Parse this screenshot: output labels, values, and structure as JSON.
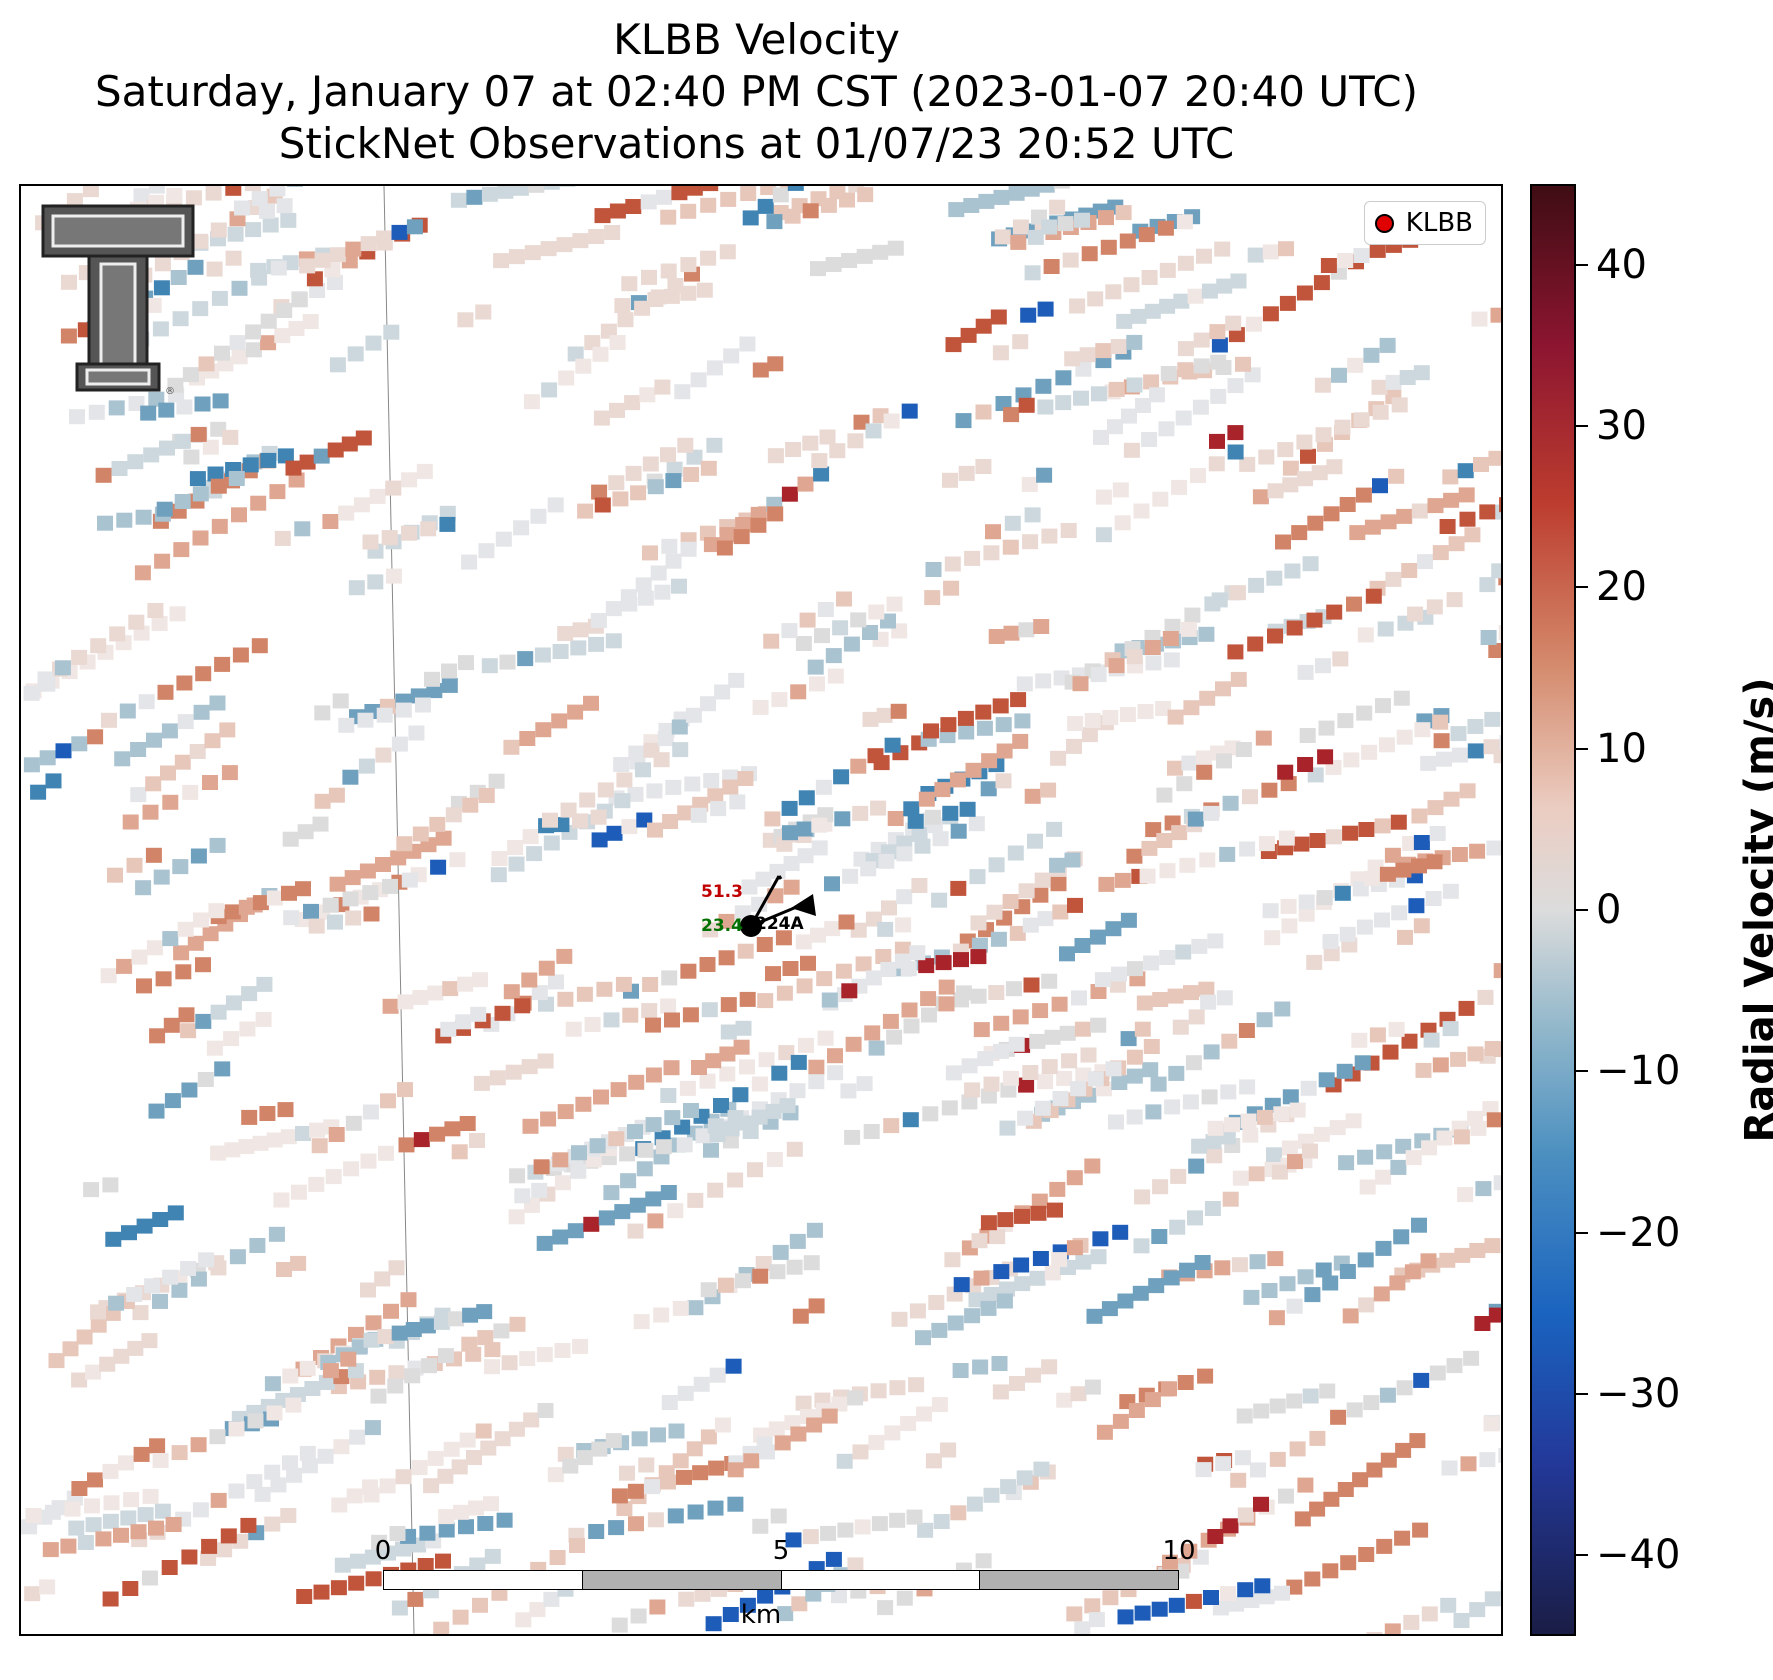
{
  "title": {
    "line1": "KLBB Velocity",
    "line2": "Saturday, January 07 at 02:40 PM CST (2023-01-07 20:40 UTC)",
    "line3": "StickNet Observations at 01/07/23 20:52 UTC"
  },
  "legend": {
    "label": "KLBB",
    "marker_color": "#e00000"
  },
  "station": {
    "id": "224A",
    "temperature": "51.3",
    "dewpoint": "23.4",
    "temperature_color": "#c00000",
    "dewpoint_color": "#007000"
  },
  "scale_bar": {
    "ticks": [
      "0",
      "5",
      "10"
    ],
    "unit": "km"
  },
  "colorbar": {
    "label": "Radial Velocity (m/s)",
    "ticks": [
      "40",
      "30",
      "20",
      "10",
      "0",
      "−10",
      "−20",
      "−30",
      "−40"
    ],
    "range": [
      -45,
      45
    ]
  },
  "logo": {
    "name": "texas-tech-double-t"
  }
}
